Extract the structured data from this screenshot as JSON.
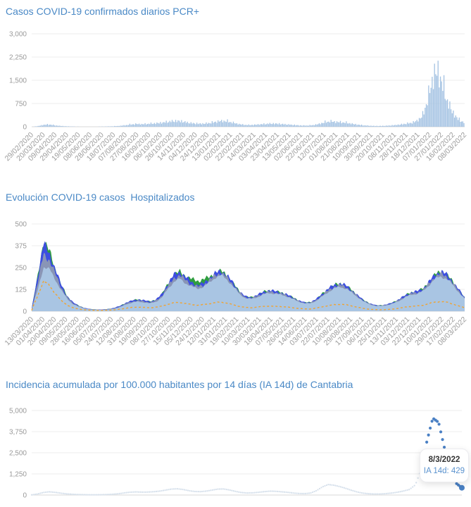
{
  "page": {
    "background": "#ffffff",
    "title_color": "#4a89c6",
    "axis_label_color": "#999999",
    "gridline_color": "#ececec"
  },
  "chart_data": [
    {
      "type": "bar",
      "title": "Casos COVID-19 confirmados diarios PCR+",
      "xlabel": "",
      "ylabel": "",
      "ylim": [
        0,
        3000
      ],
      "yticks": [
        0,
        750,
        1500,
        2250,
        3000
      ],
      "ytick_labels": [
        "0",
        "750",
        "1,500",
        "2,250",
        "3,000"
      ],
      "grid": true,
      "legend": "none",
      "bar_color": "#a5c3e3",
      "xtick_labels": [
        "29/02/2020",
        "20/03/2020",
        "09/04/2020",
        "29/04/2020",
        "19/05/2020",
        "08/06/2020",
        "28/06/2020",
        "18/07/2020",
        "07/08/2020",
        "27/08/2020",
        "16/09/2020",
        "06/10/2020",
        "26/10/2020",
        "14/11/2020",
        "04/12/2020",
        "24/12/2020",
        "13/01/2021",
        "02/02/2021",
        "22/02/2021",
        "14/03/2021",
        "03/04/2021",
        "23/04/2021",
        "13/05/2021",
        "02/06/2021",
        "22/06/2021",
        "12/07/2021",
        "01/08/2021",
        "21/08/2021",
        "10/09/2021",
        "30/09/2021",
        "20/10/2021",
        "08/11/2021",
        "28/11/2021",
        "18/12/2021",
        "07/01/2022",
        "27/01/2022",
        "16/02/2022",
        "08/03/2022"
      ],
      "sampling": "daily cases estimated every ~10 days from 29/02/2020 to 08/03/2022",
      "values": [
        2,
        30,
        90,
        105,
        60,
        35,
        20,
        12,
        8,
        5,
        6,
        8,
        10,
        15,
        25,
        40,
        70,
        110,
        130,
        120,
        140,
        160,
        180,
        220,
        260,
        270,
        230,
        180,
        150,
        140,
        160,
        200,
        260,
        270,
        220,
        150,
        100,
        80,
        90,
        110,
        130,
        150,
        140,
        120,
        100,
        80,
        60,
        55,
        70,
        120,
        200,
        250,
        230,
        210,
        180,
        130,
        90,
        60,
        45,
        35,
        40,
        50,
        70,
        100,
        140,
        180,
        280,
        550,
        1500,
        2600,
        2300,
        1300,
        700,
        350,
        200
      ]
    },
    {
      "type": "area",
      "title": "Evolución COVID-19 casos  Hospitalizados",
      "xlabel": "",
      "ylabel": "",
      "ylim": [
        0,
        500
      ],
      "yticks": [
        0,
        125,
        250,
        375,
        500
      ],
      "ytick_labels": [
        "0",
        "125",
        "250",
        "375",
        "500"
      ],
      "grid": true,
      "legend": "none",
      "xtick_labels": [
        "13/03/2020",
        "01/04/2020",
        "20/04/2020",
        "09/05/2020",
        "28/05/2020",
        "16/06/2020",
        "05/07/2020",
        "24/07/2020",
        "12/08/2020",
        "31/08/2020",
        "19/09/2020",
        "08/10/2020",
        "27/10/2020",
        "15/11/2020",
        "05/12/2020",
        "24/12/2020",
        "12/01/2021",
        "31/01/2021",
        "19/02/2021",
        "10/03/2021",
        "30/03/2021",
        "18/04/2021",
        "07/05/2021",
        "26/05/2021",
        "14/06/2021",
        "03/07/2021",
        "22/07/2021",
        "10/08/2021",
        "29/08/2021",
        "17/09/2021",
        "06/10/2021",
        "25/10/2021",
        "13/11/2021",
        "03/12/2021",
        "22/12/2021",
        "10/01/2022",
        "29/01/2022",
        "17/02/2022",
        "08/03/2022"
      ],
      "sampling": "values estimated every ~10 days from 13/03/2020 to 08/03/2022",
      "series": [
        {
          "name": "green-line",
          "kind": "area",
          "color": "#2f9e3f",
          "values": [
            15,
            200,
            405,
            345,
            240,
            150,
            85,
            50,
            30,
            18,
            12,
            10,
            10,
            13,
            20,
            32,
            50,
            62,
            68,
            62,
            55,
            68,
            100,
            160,
            210,
            228,
            200,
            185,
            172,
            185,
            195,
            222,
            230,
            205,
            160,
            115,
            85,
            80,
            92,
            110,
            120,
            115,
            108,
            96,
            80,
            62,
            50,
            52,
            70,
            100,
            130,
            150,
            160,
            148,
            120,
            90,
            62,
            45,
            34,
            34,
            40,
            52,
            70,
            92,
            108,
            115,
            130,
            170,
            210,
            230,
            210,
            170,
            125,
            78
          ]
        },
        {
          "name": "blue-band",
          "kind": "area",
          "color": "#3d4ee0",
          "values": [
            15,
            200,
            390,
            330,
            240,
            150,
            85,
            50,
            30,
            18,
            12,
            10,
            10,
            13,
            20,
            32,
            50,
            62,
            68,
            62,
            55,
            68,
            100,
            160,
            210,
            225,
            195,
            165,
            150,
            160,
            190,
            220,
            230,
            205,
            160,
            115,
            85,
            80,
            92,
            110,
            120,
            115,
            108,
            96,
            80,
            62,
            50,
            52,
            70,
            100,
            130,
            150,
            160,
            148,
            120,
            90,
            62,
            45,
            34,
            34,
            40,
            52,
            70,
            92,
            108,
            115,
            130,
            170,
            210,
            230,
            210,
            170,
            125,
            78
          ]
        },
        {
          "name": "gray-band",
          "kind": "area",
          "color": "#97a2ae",
          "values": [
            12,
            160,
            330,
            290,
            215,
            135,
            78,
            45,
            28,
            16,
            11,
            9,
            9,
            11,
            17,
            28,
            45,
            56,
            61,
            56,
            50,
            61,
            90,
            145,
            190,
            205,
            178,
            152,
            140,
            150,
            178,
            208,
            218,
            192,
            150,
            108,
            80,
            75,
            86,
            102,
            112,
            108,
            101,
            90,
            75,
            58,
            47,
            48,
            65,
            92,
            120,
            140,
            150,
            139,
            112,
            85,
            58,
            42,
            32,
            32,
            37,
            48,
            65,
            86,
            101,
            107,
            122,
            160,
            197,
            215,
            197,
            160,
            117,
            74
          ]
        },
        {
          "name": "hospitalizados-area",
          "kind": "area",
          "color": "#a9c5e3",
          "values": [
            10,
            120,
            255,
            240,
            180,
            120,
            70,
            40,
            25,
            15,
            10,
            8,
            8,
            10,
            15,
            25,
            40,
            50,
            55,
            50,
            45,
            55,
            80,
            130,
            170,
            185,
            160,
            140,
            130,
            140,
            165,
            195,
            205,
            180,
            140,
            100,
            75,
            70,
            80,
            95,
            105,
            100,
            95,
            85,
            70,
            55,
            45,
            45,
            60,
            85,
            110,
            130,
            140,
            130,
            105,
            80,
            55,
            40,
            30,
            30,
            35,
            45,
            60,
            80,
            95,
            100,
            115,
            150,
            185,
            200,
            185,
            150,
            110,
            70
          ]
        },
        {
          "name": "orange-dashed-line",
          "kind": "line",
          "style": "dashed",
          "color": "#f0a332",
          "values": [
            5,
            90,
            170,
            150,
            100,
            60,
            35,
            20,
            12,
            8,
            6,
            5,
            5,
            6,
            8,
            12,
            18,
            22,
            24,
            22,
            20,
            24,
            30,
            40,
            48,
            50,
            44,
            38,
            35,
            38,
            44,
            50,
            52,
            46,
            36,
            28,
            22,
            20,
            24,
            28,
            30,
            28,
            27,
            24,
            20,
            16,
            13,
            13,
            18,
            26,
            32,
            38,
            40,
            37,
            30,
            22,
            16,
            11,
            9,
            9,
            10,
            13,
            18,
            24,
            28,
            30,
            34,
            44,
            52,
            56,
            52,
            42,
            30,
            20
          ]
        }
      ]
    },
    {
      "type": "scatter",
      "title": "Incidencia acumulada por 100.000 habitantes por 14 días (IA 14d) de Cantabria",
      "xlabel": "",
      "ylabel": "",
      "ylim": [
        0,
        5000
      ],
      "yticks": [
        0,
        1250,
        2500,
        3750,
        5000
      ],
      "ytick_labels": [
        "0",
        "1,250",
        "2,500",
        "3,750",
        "5,000"
      ],
      "grid": true,
      "legend": "none",
      "history_color": "#d7e1ec",
      "recent_color": "#4a80c4",
      "recent_from_index": 67,
      "sampling": "IA 14d estimated every ~10 days from 29/02/2020 to 08/03/2022",
      "values": [
        10,
        60,
        150,
        190,
        160,
        110,
        70,
        45,
        30,
        20,
        15,
        15,
        20,
        30,
        50,
        80,
        130,
        170,
        185,
        170,
        175,
        195,
        230,
        290,
        350,
        370,
        330,
        260,
        210,
        200,
        230,
        290,
        350,
        360,
        300,
        220,
        150,
        120,
        130,
        160,
        200,
        230,
        220,
        190,
        160,
        120,
        90,
        85,
        120,
        260,
        480,
        620,
        580,
        500,
        400,
        280,
        180,
        110,
        75,
        60,
        65,
        85,
        120,
        170,
        240,
        330,
        600,
        1500,
        3200,
        4550,
        4300,
        2800,
        1400,
        700,
        429
      ],
      "last_value": 429,
      "tooltip": {
        "date": "8/3/2022",
        "text": "IA 14d: 429"
      }
    }
  ]
}
